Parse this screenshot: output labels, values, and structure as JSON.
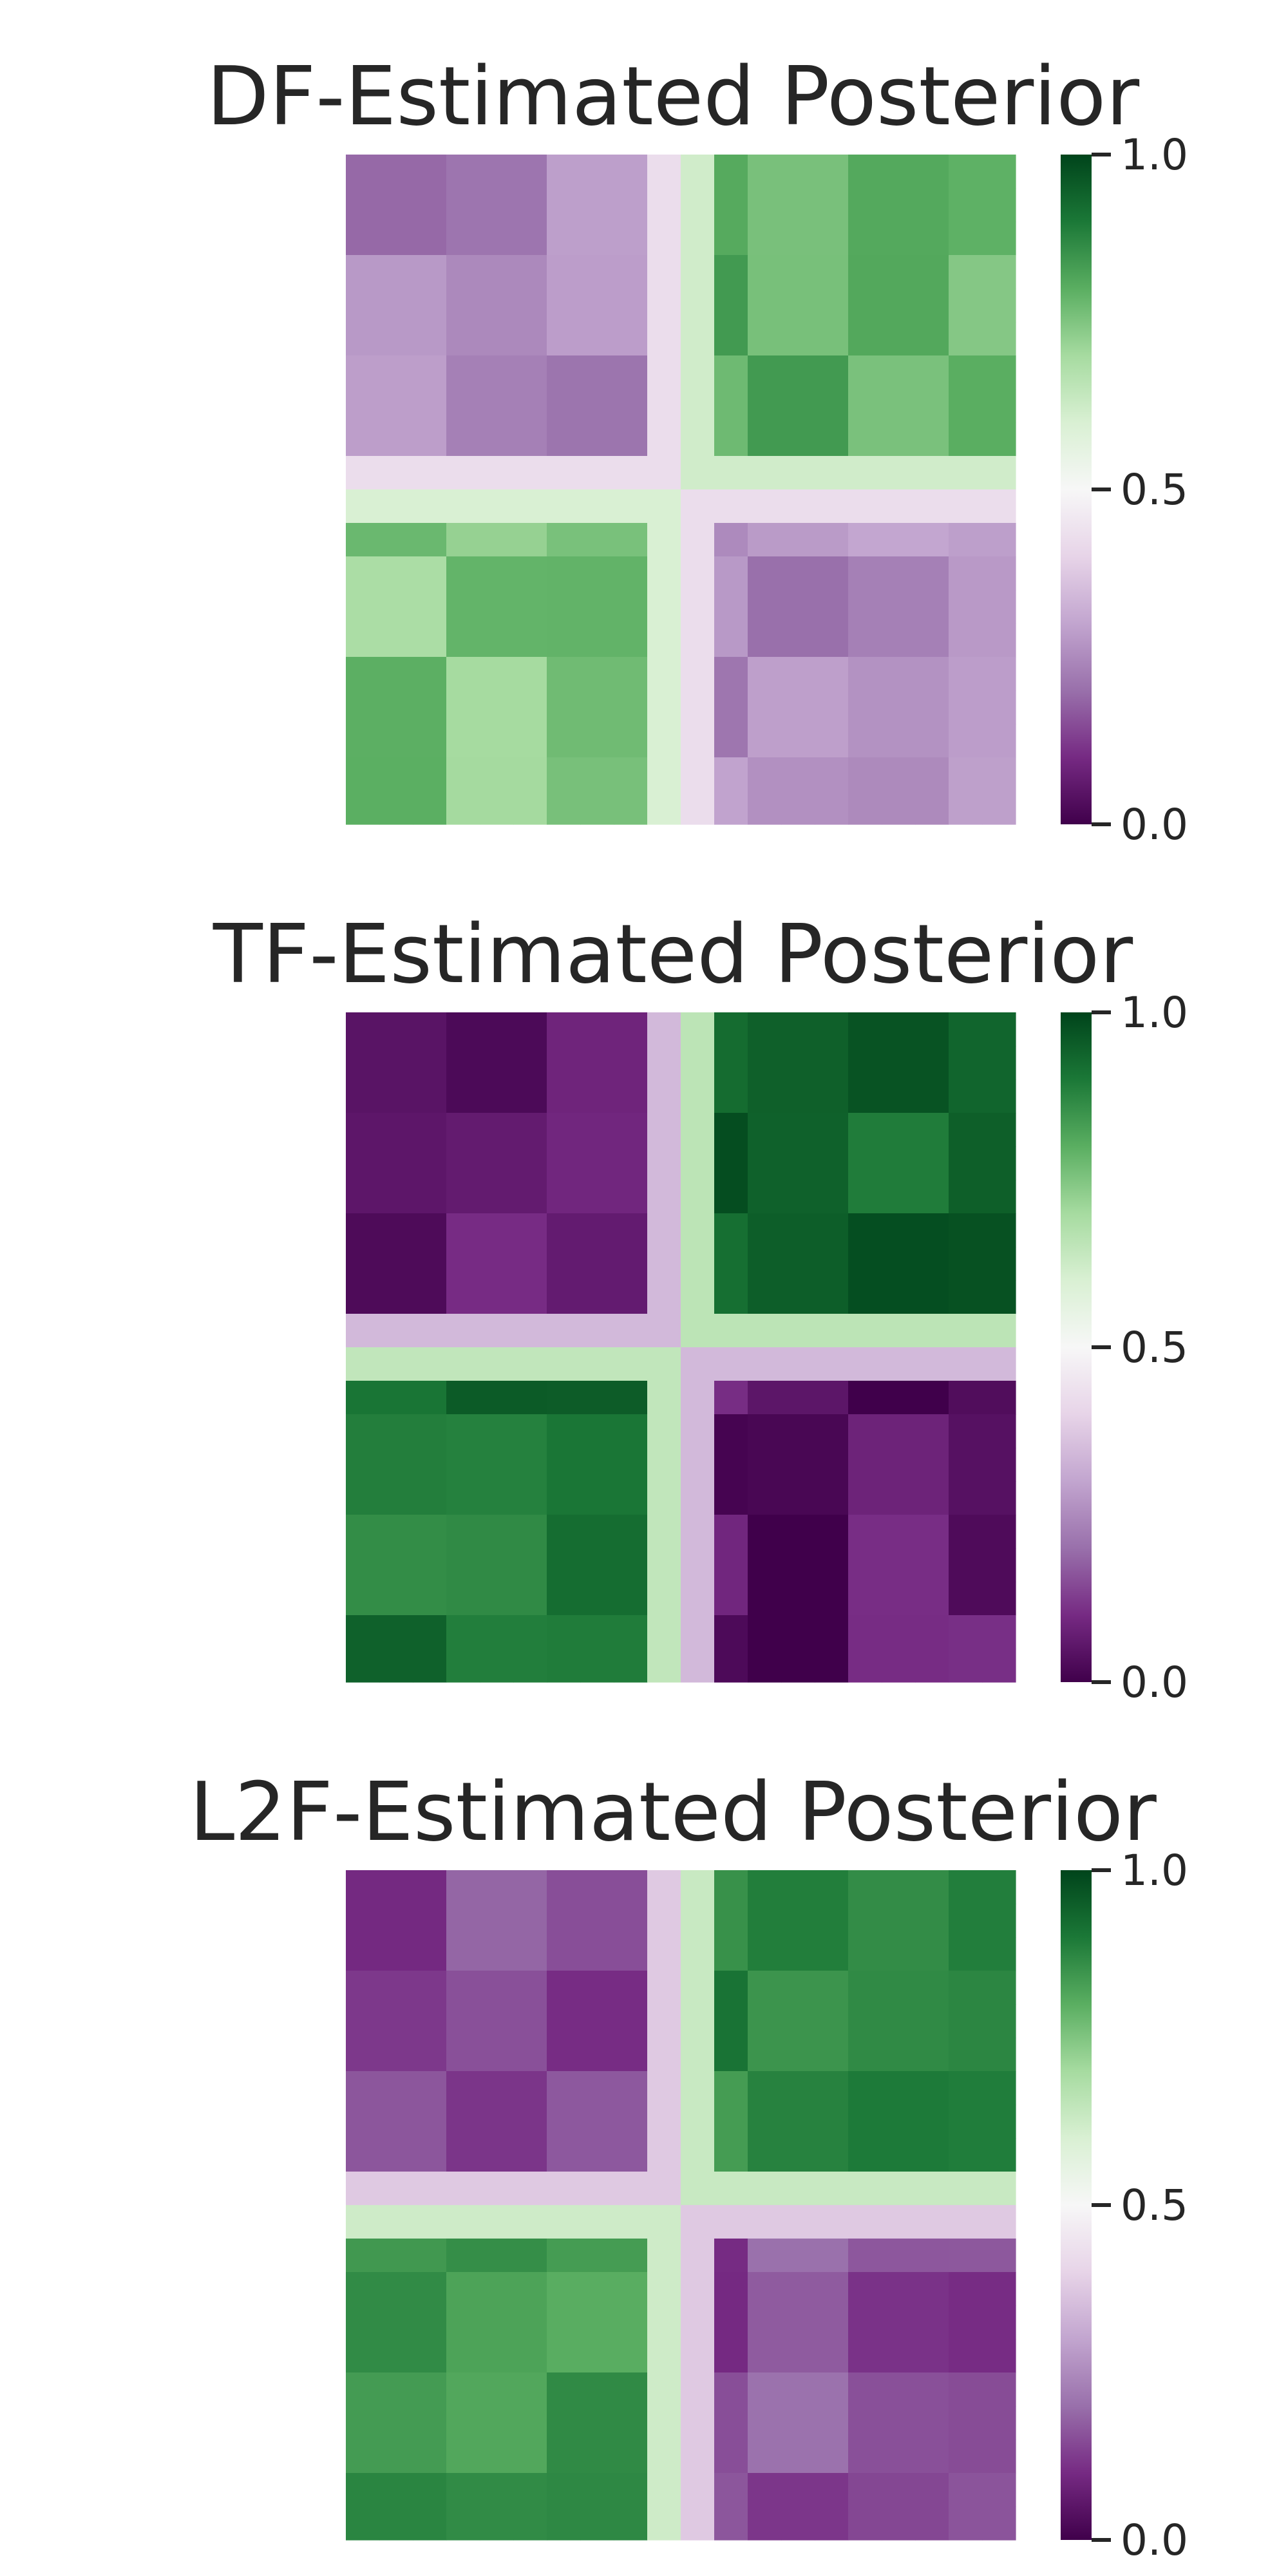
{
  "chart_data": [
    {
      "type": "heatmap",
      "title": "DF-Estimated Posterior",
      "xlabel": "",
      "ylabel": "",
      "grid": false,
      "colormap": "PRGn",
      "colorbar": {
        "range": [
          0,
          1
        ],
        "ticks": [
          "0.0",
          "0.5",
          "1.0"
        ],
        "position": "right"
      },
      "blocks": [
        {
          "rows": [
            0,
            10
          ],
          "cols": [
            0,
            10
          ],
          "value": 0.25
        },
        {
          "rows": [
            0,
            10
          ],
          "cols": [
            10,
            20
          ],
          "value": 0.8
        },
        {
          "rows": [
            10,
            20
          ],
          "cols": [
            0,
            10
          ],
          "value": 0.75
        },
        {
          "rows": [
            10,
            20
          ],
          "cols": [
            10,
            20
          ],
          "value": 0.25
        }
      ],
      "transition_value": 0.52
    },
    {
      "type": "heatmap",
      "title": "TF-Estimated Posterior",
      "xlabel": "",
      "ylabel": "",
      "grid": false,
      "colormap": "PRGn",
      "colorbar": {
        "range": [
          0,
          1
        ],
        "ticks": [
          "0.0",
          "0.5",
          "1.0"
        ],
        "position": "right"
      },
      "blocks": [
        {
          "rows": [
            0,
            10
          ],
          "cols": [
            0,
            10
          ],
          "value": 0.05
        },
        {
          "rows": [
            0,
            10
          ],
          "cols": [
            10,
            20
          ],
          "value": 0.95
        },
        {
          "rows": [
            10,
            20
          ],
          "cols": [
            0,
            10
          ],
          "value": 0.92
        },
        {
          "rows": [
            10,
            20
          ],
          "cols": [
            10,
            20
          ],
          "value": 0.05
        }
      ],
      "transition_value": 0.5
    },
    {
      "type": "heatmap",
      "title": "L2F-Estimated Posterior",
      "xlabel": "",
      "ylabel": "",
      "grid": false,
      "colormap": "PRGn",
      "colorbar": {
        "range": [
          0,
          1
        ],
        "ticks": [
          "0.0",
          "0.5",
          "1.0"
        ],
        "position": "right"
      },
      "blocks": [
        {
          "rows": [
            0,
            10
          ],
          "cols": [
            0,
            10
          ],
          "value": 0.15
        },
        {
          "rows": [
            0,
            10
          ],
          "cols": [
            10,
            20
          ],
          "value": 0.88
        },
        {
          "rows": [
            10,
            20
          ],
          "cols": [
            0,
            10
          ],
          "value": 0.85
        },
        {
          "rows": [
            10,
            20
          ],
          "cols": [
            10,
            20
          ],
          "value": 0.15
        }
      ],
      "transition_value": 0.5
    }
  ]
}
